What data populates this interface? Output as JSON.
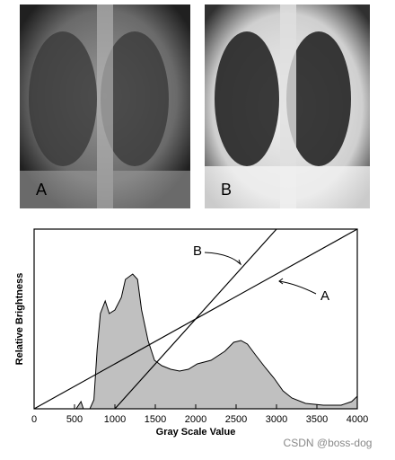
{
  "panels": [
    {
      "label": "A"
    },
    {
      "label": "B"
    }
  ],
  "chart_data": {
    "type": "line",
    "x_label": "Gray Scale Value",
    "y_label": "Relative Brightness",
    "xlim": [
      0,
      4000
    ],
    "ylim": [
      0,
      100
    ],
    "xticks": [
      0,
      500,
      1000,
      1500,
      2000,
      2500,
      3000,
      3500,
      4000
    ],
    "series": [
      {
        "color": "#c0c0c0",
        "fill": true,
        "x": [
          0,
          520,
          580,
          610,
          690,
          740,
          780,
          820,
          880,
          930,
          1000,
          1080,
          1130,
          1220,
          1280,
          1330,
          1410,
          1490,
          1580,
          1690,
          1800,
          1910,
          2020,
          2190,
          2360,
          2470,
          2560,
          2640,
          2740,
          2860,
          2970,
          3080,
          3190,
          3360,
          3580,
          3800,
          3930,
          4000
        ],
        "values": [
          0,
          0,
          4,
          0,
          0,
          5,
          33,
          53,
          60,
          53,
          55,
          62,
          72,
          75,
          72,
          55,
          38,
          27,
          24,
          22,
          21,
          22,
          25,
          27,
          32,
          37,
          38,
          36,
          30,
          23,
          17,
          10,
          6,
          3,
          2,
          2,
          4,
          7
        ]
      },
      {
        "color": "#000000",
        "fill": false,
        "x": [
          0,
          4000
        ],
        "values": [
          0,
          100
        ]
      },
      {
        "color": "#000000",
        "fill": false,
        "x": [
          1000,
          3000
        ],
        "values": [
          0,
          100
        ]
      }
    ],
    "annotations": [
      "B",
      "A"
    ]
  },
  "watermark": "CSDN @boss-dog"
}
